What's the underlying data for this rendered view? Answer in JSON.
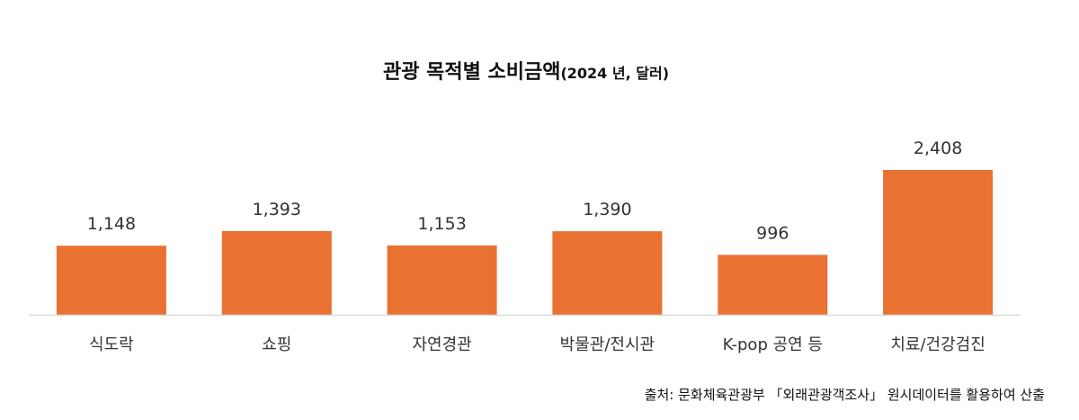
{
  "chart_data": {
    "type": "bar",
    "title": "관광 목적별 소비금액",
    "subtitle": "(2024 년, 달러)",
    "categories": [
      "식도락",
      "쇼핑",
      "자연경관",
      "박물관/전시관",
      "K-pop 공연 등",
      "치료/건강검진"
    ],
    "values": [
      1148,
      1393,
      1153,
      1390,
      996,
      2408
    ],
    "value_labels": [
      "1,148",
      "1,393",
      "1,153",
      "1,390",
      "996",
      "2,408"
    ],
    "ylim": [
      0,
      2800
    ],
    "grid": false,
    "legend": "none",
    "colors": {
      "bar": "#E97132",
      "axis": "#D9D9D9"
    }
  },
  "source": "출처: 문화체육관광부 「외래관광객조사」 원시데이터를 활용하여 산출"
}
